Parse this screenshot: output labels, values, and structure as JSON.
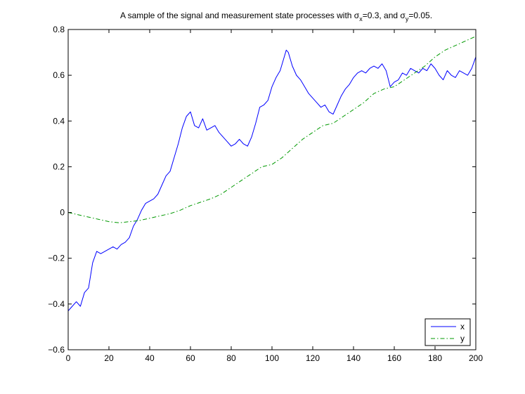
{
  "chart_data": {
    "type": "line",
    "title_parts": {
      "pre": "A sample of the signal and measurement state processes with ",
      "sym_x": "σ",
      "sub_x": "x",
      "mid": "=0.3, and ",
      "sym_y": "σ",
      "sub_y": "y",
      "post": "=0.05."
    },
    "xlim": [
      0,
      200
    ],
    "ylim": [
      -0.6,
      0.8
    ],
    "x_ticks": [
      "0",
      "20",
      "40",
      "60",
      "80",
      "100",
      "120",
      "140",
      "160",
      "180",
      "200"
    ],
    "y_ticks": [
      "−0.6",
      "−0.4",
      "−0.2",
      "0",
      "0.2",
      "0.4",
      "0.6",
      "0.8"
    ],
    "legend": {
      "position": "bottom-right"
    },
    "series": [
      {
        "name": "x",
        "color": "#0000ff",
        "style": "solid",
        "points": [
          [
            0,
            -0.43
          ],
          [
            2,
            -0.41
          ],
          [
            4,
            -0.39
          ],
          [
            6,
            -0.41
          ],
          [
            8,
            -0.35
          ],
          [
            10,
            -0.33
          ],
          [
            12,
            -0.22
          ],
          [
            14,
            -0.17
          ],
          [
            16,
            -0.18
          ],
          [
            18,
            -0.17
          ],
          [
            20,
            -0.16
          ],
          [
            22,
            -0.15
          ],
          [
            24,
            -0.16
          ],
          [
            26,
            -0.14
          ],
          [
            28,
            -0.13
          ],
          [
            30,
            -0.11
          ],
          [
            32,
            -0.06
          ],
          [
            34,
            -0.03
          ],
          [
            36,
            0.01
          ],
          [
            38,
            0.04
          ],
          [
            40,
            0.05
          ],
          [
            42,
            0.06
          ],
          [
            44,
            0.08
          ],
          [
            46,
            0.12
          ],
          [
            48,
            0.16
          ],
          [
            50,
            0.18
          ],
          [
            52,
            0.24
          ],
          [
            54,
            0.3
          ],
          [
            56,
            0.37
          ],
          [
            58,
            0.42
          ],
          [
            60,
            0.44
          ],
          [
            62,
            0.38
          ],
          [
            64,
            0.37
          ],
          [
            66,
            0.41
          ],
          [
            68,
            0.36
          ],
          [
            70,
            0.37
          ],
          [
            72,
            0.38
          ],
          [
            74,
            0.35
          ],
          [
            76,
            0.33
          ],
          [
            78,
            0.31
          ],
          [
            80,
            0.29
          ],
          [
            82,
            0.3
          ],
          [
            84,
            0.32
          ],
          [
            86,
            0.3
          ],
          [
            88,
            0.29
          ],
          [
            90,
            0.33
          ],
          [
            92,
            0.39
          ],
          [
            94,
            0.46
          ],
          [
            96,
            0.47
          ],
          [
            98,
            0.49
          ],
          [
            100,
            0.55
          ],
          [
            102,
            0.59
          ],
          [
            104,
            0.62
          ],
          [
            106,
            0.68
          ],
          [
            107,
            0.71
          ],
          [
            108,
            0.7
          ],
          [
            110,
            0.64
          ],
          [
            112,
            0.6
          ],
          [
            114,
            0.58
          ],
          [
            116,
            0.55
          ],
          [
            118,
            0.52
          ],
          [
            120,
            0.5
          ],
          [
            122,
            0.48
          ],
          [
            124,
            0.46
          ],
          [
            126,
            0.47
          ],
          [
            128,
            0.44
          ],
          [
            130,
            0.43
          ],
          [
            132,
            0.47
          ],
          [
            134,
            0.51
          ],
          [
            136,
            0.54
          ],
          [
            138,
            0.56
          ],
          [
            140,
            0.59
          ],
          [
            142,
            0.61
          ],
          [
            144,
            0.62
          ],
          [
            146,
            0.61
          ],
          [
            148,
            0.63
          ],
          [
            150,
            0.64
          ],
          [
            152,
            0.63
          ],
          [
            154,
            0.65
          ],
          [
            156,
            0.62
          ],
          [
            158,
            0.55
          ],
          [
            160,
            0.57
          ],
          [
            162,
            0.58
          ],
          [
            164,
            0.61
          ],
          [
            166,
            0.6
          ],
          [
            168,
            0.63
          ],
          [
            170,
            0.62
          ],
          [
            172,
            0.61
          ],
          [
            174,
            0.63
          ],
          [
            176,
            0.62
          ],
          [
            178,
            0.65
          ],
          [
            180,
            0.63
          ],
          [
            182,
            0.6
          ],
          [
            184,
            0.58
          ],
          [
            186,
            0.62
          ],
          [
            188,
            0.6
          ],
          [
            190,
            0.59
          ],
          [
            192,
            0.62
          ],
          [
            194,
            0.61
          ],
          [
            196,
            0.6
          ],
          [
            198,
            0.63
          ],
          [
            200,
            0.68
          ]
        ]
      },
      {
        "name": "y",
        "color": "#009900",
        "style": "dash-dot",
        "points": [
          [
            0,
            0.0
          ],
          [
            5,
            -0.01
          ],
          [
            10,
            -0.02
          ],
          [
            15,
            -0.03
          ],
          [
            20,
            -0.04
          ],
          [
            25,
            -0.045
          ],
          [
            30,
            -0.04
          ],
          [
            35,
            -0.035
          ],
          [
            40,
            -0.025
          ],
          [
            45,
            -0.015
          ],
          [
            50,
            -0.005
          ],
          [
            55,
            0.01
          ],
          [
            60,
            0.03
          ],
          [
            65,
            0.045
          ],
          [
            70,
            0.06
          ],
          [
            75,
            0.08
          ],
          [
            80,
            0.11
          ],
          [
            85,
            0.14
          ],
          [
            90,
            0.17
          ],
          [
            95,
            0.2
          ],
          [
            100,
            0.21
          ],
          [
            105,
            0.24
          ],
          [
            110,
            0.28
          ],
          [
            115,
            0.32
          ],
          [
            120,
            0.35
          ],
          [
            125,
            0.38
          ],
          [
            130,
            0.39
          ],
          [
            135,
            0.42
          ],
          [
            140,
            0.45
          ],
          [
            145,
            0.48
          ],
          [
            150,
            0.52
          ],
          [
            155,
            0.54
          ],
          [
            160,
            0.55
          ],
          [
            165,
            0.58
          ],
          [
            170,
            0.61
          ],
          [
            175,
            0.64
          ],
          [
            180,
            0.68
          ],
          [
            185,
            0.71
          ],
          [
            190,
            0.73
          ],
          [
            195,
            0.75
          ],
          [
            200,
            0.77
          ]
        ]
      }
    ]
  }
}
